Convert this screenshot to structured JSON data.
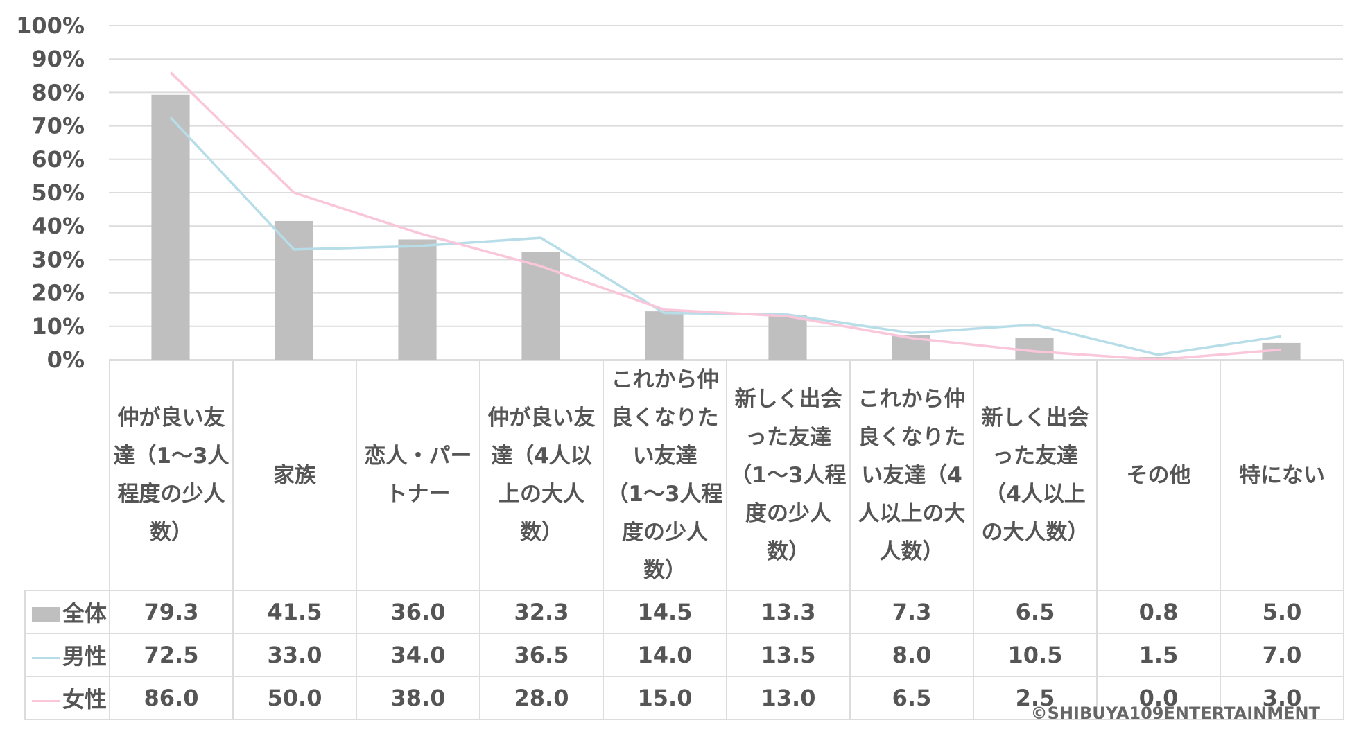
{
  "chart_data": {
    "type": "bar",
    "categories": [
      "仲が良い友達（1〜3人程度の少人数）",
      "家族",
      "恋人・パートナー",
      "仲が良い友達（4人以上の大人数）",
      "これから仲良くなりたい友達（1〜3人程度の少人数）",
      "新しく出会った友達（1〜3人程度の少人数）",
      "これから仲良くなりたい友達（4人以上の大人数）",
      "新しく出会った友達（4人以上の大人数）",
      "その他",
      "特にない"
    ],
    "series": [
      {
        "name": "全体",
        "type": "bar",
        "color": "#bfbfbf",
        "values": [
          79.3,
          41.5,
          36.0,
          32.3,
          14.5,
          13.3,
          7.3,
          6.5,
          0.8,
          5.0
        ],
        "labels": [
          "79.3",
          "41.5",
          "36.0",
          "32.3",
          "14.5",
          "13.3",
          "7.3",
          "6.5",
          "0.8",
          "5.0"
        ]
      },
      {
        "name": "男性",
        "type": "line",
        "color": "#b7dde8",
        "values": [
          72.5,
          33.0,
          34.0,
          36.5,
          14.0,
          13.5,
          8.0,
          10.5,
          1.5,
          7.0
        ],
        "labels": [
          "72.5",
          "33.0",
          "34.0",
          "36.5",
          "14.0",
          "13.5",
          "8.0",
          "10.5",
          "1.5",
          "7.0"
        ]
      },
      {
        "name": "女性",
        "type": "line",
        "color": "#f9c6da",
        "values": [
          86.0,
          50.0,
          38.0,
          28.0,
          15.0,
          13.0,
          6.5,
          2.5,
          0.0,
          3.0
        ],
        "labels": [
          "86.0",
          "50.0",
          "38.0",
          "28.0",
          "15.0",
          "13.0",
          "6.5",
          "2.5",
          "0.0",
          "3.0"
        ]
      }
    ],
    "ylim": [
      0,
      100
    ],
    "yticks": [
      "0%",
      "10%",
      "20%",
      "30%",
      "40%",
      "50%",
      "60%",
      "70%",
      "80%",
      "90%",
      "100%"
    ],
    "grid": true,
    "legend": "data-table"
  },
  "copyright": "©SHIBUYA109ENTERTAINMENT"
}
